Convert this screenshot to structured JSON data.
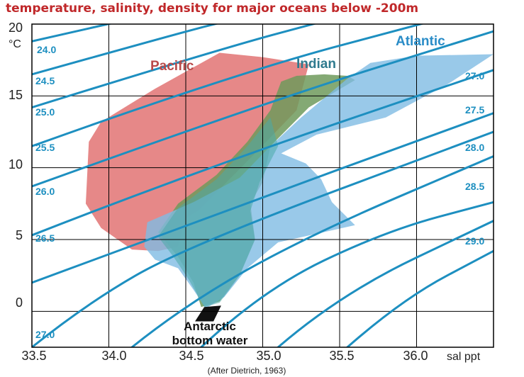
{
  "chart_data": {
    "type": "area",
    "title": "temperature, salinity, density for major oceans below -200m",
    "xlabel": "sal ppt",
    "ylabel": "°C",
    "xlim": [
      33.5,
      36.5
    ],
    "ylim": [
      -2.5,
      20
    ],
    "x_ticks": [
      "33.5",
      "34.0",
      "34.5",
      "35.0",
      "35.5",
      "36.0"
    ],
    "y_ticks": [
      "0",
      "5",
      "10",
      "15",
      "20"
    ],
    "grid": true,
    "colors": {
      "pacific": "#e37b7b",
      "indian": "#6f9a5c",
      "atlantic": "#7fbbe4",
      "teal_core": "#4aa9a7",
      "density_lines": "#1d8fc0",
      "title": "#c0282a"
    },
    "density_labels": [
      "24.0",
      "24.5",
      "25.0",
      "25.5",
      "26.0",
      "26.5",
      "27.0",
      "27.0",
      "27.5",
      "28.0",
      "28.5",
      "29.0"
    ],
    "series": [
      {
        "name": "Pacific",
        "label_color": "#b84a4a",
        "points": [
          [
            33.87,
            11.8
          ],
          [
            33.95,
            13.2
          ],
          [
            34.3,
            15.5
          ],
          [
            34.72,
            18.0
          ],
          [
            35.0,
            17.7
          ],
          [
            35.3,
            17.2
          ],
          [
            35.22,
            14.0
          ],
          [
            34.95,
            11.0
          ],
          [
            34.72,
            8.5
          ],
          [
            34.58,
            7.0
          ],
          [
            34.5,
            6.5
          ],
          [
            34.45,
            4.5
          ],
          [
            34.32,
            4.2
          ],
          [
            34.15,
            4.3
          ],
          [
            33.95,
            5.8
          ],
          [
            33.85,
            7.5
          ]
        ]
      },
      {
        "name": "Indian",
        "label_color": "#2f7a8e",
        "points": [
          [
            34.6,
            0.3
          ],
          [
            34.55,
            2.0
          ],
          [
            34.45,
            3.8
          ],
          [
            34.32,
            5.5
          ],
          [
            34.45,
            7.5
          ],
          [
            34.7,
            9.5
          ],
          [
            34.9,
            11.8
          ],
          [
            35.05,
            14.0
          ],
          [
            35.12,
            16.0
          ],
          [
            35.22,
            16.4
          ],
          [
            35.4,
            16.5
          ],
          [
            35.55,
            16.4
          ],
          [
            35.6,
            16.1
          ],
          [
            35.3,
            14.2
          ],
          [
            35.05,
            11.5
          ],
          [
            35.0,
            9.0
          ],
          [
            34.92,
            7.5
          ],
          [
            34.95,
            5.0
          ],
          [
            34.85,
            2.5
          ],
          [
            34.72,
            0.7
          ]
        ]
      },
      {
        "name": "Atlantic",
        "label_color": "#2a8cc7",
        "points": [
          [
            34.63,
            0.2
          ],
          [
            34.55,
            1.5
          ],
          [
            34.45,
            3.0
          ],
          [
            34.3,
            3.6
          ],
          [
            34.23,
            4.5
          ],
          [
            34.25,
            6.2
          ],
          [
            34.55,
            7.6
          ],
          [
            34.85,
            9.3
          ],
          [
            35.05,
            11.5
          ],
          [
            35.25,
            13.5
          ],
          [
            35.55,
            16.2
          ],
          [
            35.7,
            17.3
          ],
          [
            36.0,
            17.8
          ],
          [
            36.5,
            17.9
          ],
          [
            36.2,
            15.8
          ],
          [
            35.8,
            13.5
          ],
          [
            35.35,
            12.3
          ],
          [
            35.12,
            11.0
          ],
          [
            35.28,
            10.3
          ],
          [
            35.38,
            9.2
          ],
          [
            35.45,
            7.6
          ],
          [
            35.6,
            6.0
          ],
          [
            35.1,
            4.8
          ],
          [
            34.9,
            3.0
          ],
          [
            34.75,
            1.0
          ]
        ]
      },
      {
        "name": "Antarctic bottom water",
        "points": [
          [
            34.56,
            -0.7
          ],
          [
            34.62,
            0.3
          ],
          [
            34.73,
            0.4
          ],
          [
            34.68,
            -0.7
          ]
        ]
      }
    ],
    "density_isolines": [
      {
        "label": "24.0",
        "points": [
          [
            33.5,
            18.8
          ],
          [
            34.2,
            20.5
          ]
        ]
      },
      {
        "label": "24.5",
        "points": [
          [
            33.5,
            16.5
          ],
          [
            34.5,
            19.5
          ],
          [
            34.8,
            20.3
          ]
        ]
      },
      {
        "label": "25.0",
        "points": [
          [
            33.5,
            14.2
          ],
          [
            34.7,
            18.2
          ],
          [
            35.5,
            20.5
          ]
        ]
      },
      {
        "label": "25.5",
        "points": [
          [
            33.5,
            11.5
          ],
          [
            34.8,
            16.5
          ],
          [
            36.2,
            20.5
          ]
        ]
      },
      {
        "label": "26.0",
        "points": [
          [
            33.5,
            8.7
          ],
          [
            35.0,
            14.5
          ],
          [
            36.5,
            19.5
          ]
        ]
      },
      {
        "label": "26.5",
        "points": [
          [
            33.5,
            5.3
          ],
          [
            34.5,
            9.5
          ],
          [
            36.5,
            16.8
          ]
        ]
      },
      {
        "label": "27.0",
        "points": [
          [
            33.5,
            2.0
          ],
          [
            34.5,
            6.0
          ],
          [
            36.5,
            13.8
          ]
        ]
      },
      {
        "label": "27.0",
        "points": [
          [
            33.5,
            -2.5
          ],
          [
            33.85,
            0.5
          ],
          [
            34.5,
            4.5
          ],
          [
            36.5,
            12.5
          ]
        ]
      },
      {
        "label": "27.5",
        "points": [
          [
            34.15,
            -2.5
          ],
          [
            34.5,
            0.5
          ],
          [
            35.3,
            5.3
          ],
          [
            36.5,
            10.8
          ]
        ]
      },
      {
        "label": "28.0",
        "points": [
          [
            34.6,
            -2.5
          ],
          [
            35.0,
            1.5
          ],
          [
            35.8,
            5.6
          ],
          [
            36.5,
            7.6
          ]
        ]
      },
      {
        "label": "28.5",
        "points": [
          [
            35.1,
            -2.5
          ],
          [
            35.5,
            1.2
          ],
          [
            36.5,
            6.3
          ]
        ]
      },
      {
        "label": "29.0",
        "points": [
          [
            35.55,
            -2.5
          ],
          [
            35.9,
            0.8
          ],
          [
            36.5,
            4.2
          ]
        ]
      }
    ],
    "annotations": [
      "Antarctic bottom water",
      "(After Dietrich, 1963)"
    ]
  }
}
